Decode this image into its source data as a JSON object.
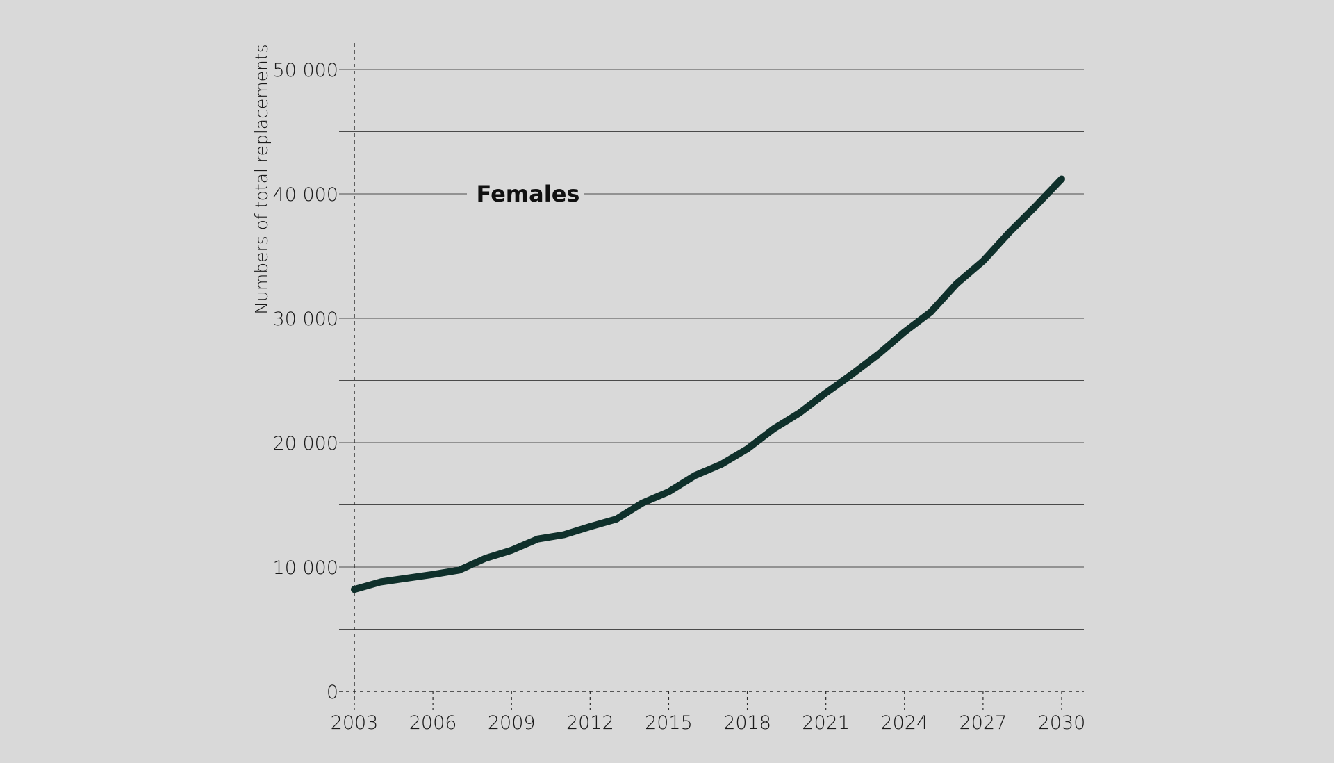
{
  "chart_data": {
    "type": "line",
    "title": "",
    "xlabel": "",
    "ylabel": "Numbers of total replacements",
    "xlim": [
      2003,
      2030
    ],
    "ylim": [
      0,
      50000
    ],
    "x_ticks": [
      2003,
      2006,
      2009,
      2012,
      2015,
      2018,
      2021,
      2024,
      2027,
      2030
    ],
    "x_tick_labels": [
      "2003",
      "2006",
      "2009",
      "2012",
      "2015",
      "2018",
      "2021",
      "2024",
      "2027",
      "2030"
    ],
    "y_ticks": [
      0,
      10000,
      20000,
      30000,
      40000,
      50000
    ],
    "y_tick_labels": [
      "0",
      "10 000",
      "20 000",
      "30 000",
      "40 000",
      "50 000"
    ],
    "y_minor_gridlines": [
      5000,
      15000,
      25000,
      35000,
      45000
    ],
    "grid": true,
    "line_color": "#0f302b",
    "series": [
      {
        "name": "Females",
        "x": [
          2003,
          2004,
          2005,
          2006,
          2007,
          2008,
          2009,
          2010,
          2011,
          2012,
          2013,
          2014,
          2015,
          2016,
          2017,
          2018,
          2019,
          2020,
          2021,
          2022,
          2023,
          2024,
          2025,
          2026,
          2027,
          2028,
          2029,
          2030
        ],
        "values": [
          8200,
          8800,
          9100,
          9400,
          9750,
          10700,
          11350,
          12250,
          12600,
          13250,
          13850,
          15150,
          16050,
          17350,
          18250,
          19500,
          21100,
          22400,
          24000,
          25500,
          27100,
          28900,
          30500,
          32800,
          34600,
          36900,
          39000,
          41200
        ]
      }
    ]
  }
}
